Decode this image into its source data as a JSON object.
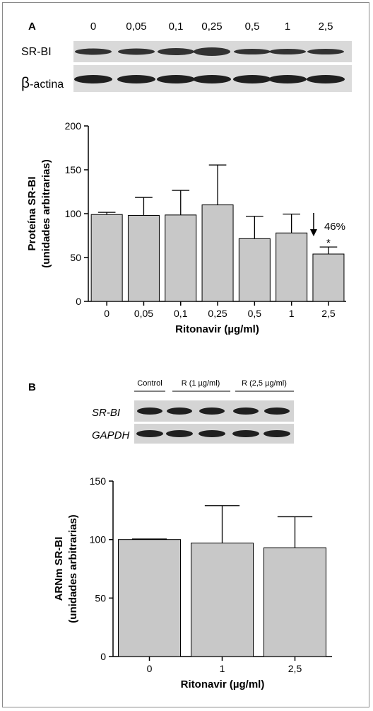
{
  "panel_a": {
    "label": "A",
    "lanes": [
      "0",
      "0,05",
      "0,1",
      "0,25",
      "0,5",
      "1",
      "2,5"
    ],
    "blot_labels": {
      "target": "SR-BI",
      "control_symbol": "β",
      "control_text": "-actina"
    }
  },
  "panel_b": {
    "label": "B",
    "groups": [
      "Control",
      "R (1 µg/ml)",
      "R (2,5 µg/ml)"
    ],
    "blot_labels": {
      "target": "SR-BI",
      "control": "GAPDH"
    }
  },
  "colors": {
    "bar_fill": "#c8c8c8",
    "axis": "#000000",
    "frame": "#8a8a8a",
    "band": "#1f1f1f"
  },
  "chart_data": [
    {
      "type": "bar",
      "categories": [
        "0",
        "0,05",
        "0,1",
        "0,25",
        "0,5",
        "1",
        "2,5"
      ],
      "values": [
        99,
        98,
        98.5,
        110,
        71.5,
        78,
        54
      ],
      "errors": [
        2.5,
        20.5,
        28,
        45.5,
        25.5,
        21.5,
        8
      ],
      "ylim": [
        0,
        200
      ],
      "yticks": [
        "0",
        "50",
        "100",
        "150",
        "200"
      ],
      "xlabel": "Ritonavir (µg/ml)",
      "ylabel_line1": "Proteína SR-BI",
      "ylabel_line2": "(unidades arbitrarias)",
      "annotation_text": "46%",
      "significance": "*"
    },
    {
      "type": "bar",
      "categories": [
        "0",
        "1",
        "2,5"
      ],
      "values": [
        100,
        97,
        93
      ],
      "errors": [
        0.5,
        32,
        26.5
      ],
      "ylim": [
        0,
        150
      ],
      "yticks": [
        "0",
        "50",
        "100",
        "150"
      ],
      "xlabel": "Ritonavir (µg/ml)",
      "ylabel_line1": "ARNm SR-BI",
      "ylabel_line2": "(unidades arbitrarias)"
    }
  ]
}
